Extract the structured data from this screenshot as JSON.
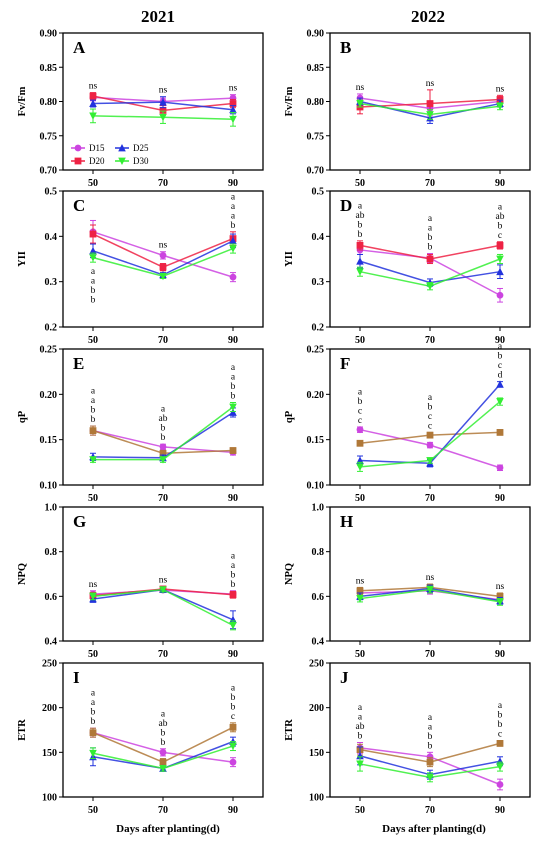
{
  "headers": {
    "left": "2021",
    "right": "2022"
  },
  "xlabel": "Days after planting(d)",
  "series_styles": [
    {
      "name": "D15",
      "color": "#cc44e0",
      "marker": "circle"
    },
    {
      "name": "D20",
      "color": "#ee2244",
      "marker": "square"
    },
    {
      "name": "D25",
      "color": "#2233dd",
      "marker": "triangle"
    },
    {
      "name": "D30",
      "color": "#33ee33",
      "marker": "triangle-down"
    }
  ],
  "chart_data": [
    {
      "type": "line",
      "panel": "A",
      "ylabel": "Fv/Fm",
      "ylim": [
        0.7,
        0.9
      ],
      "yticks": [
        "0.70",
        "0.75",
        "0.80",
        "0.85",
        "0.90"
      ],
      "x": [
        50,
        70,
        90
      ],
      "legend": {
        "placement": "bottom-left",
        "entries": [
          "D15",
          "D25",
          "D20",
          "D30"
        ]
      },
      "series": [
        {
          "name": "D15",
          "color": "#cc44e0",
          "values": [
            0.806,
            0.8,
            0.805
          ],
          "errors": [
            0.005,
            0.005,
            0.005
          ]
        },
        {
          "name": "D20",
          "color": "#ee2244",
          "values": [
            0.808,
            0.787,
            0.797
          ],
          "errors": [
            0.005,
            0.007,
            0.006
          ]
        },
        {
          "name": "D25",
          "color": "#2233dd",
          "values": [
            0.797,
            0.799,
            0.788
          ],
          "errors": [
            0.005,
            0.008,
            0.006
          ]
        },
        {
          "name": "D30",
          "color": "#33ee33",
          "values": [
            0.779,
            0.777,
            0.774
          ],
          "errors": [
            0.01,
            0.009,
            0.01
          ]
        }
      ],
      "sig_labels": [
        [
          "ns"
        ],
        [
          "ns"
        ],
        [
          "ns"
        ]
      ]
    },
    {
      "type": "line",
      "panel": "B",
      "ylabel": "Fv/Fm",
      "ylim": [
        0.7,
        0.9
      ],
      "yticks": [
        "0.70",
        "0.75",
        "0.80",
        "0.85",
        "0.90"
      ],
      "x": [
        50,
        70,
        90
      ],
      "series": [
        {
          "name": "D15",
          "color": "#cc44e0",
          "values": [
            0.805,
            0.79,
            0.8
          ],
          "errors": [
            0.006,
            0.01,
            0.006
          ]
        },
        {
          "name": "D20",
          "color": "#ee2244",
          "values": [
            0.792,
            0.797,
            0.803
          ],
          "errors": [
            0.01,
            0.02,
            0.006
          ]
        },
        {
          "name": "D25",
          "color": "#2233dd",
          "values": [
            0.8,
            0.776,
            0.797
          ],
          "errors": [
            0.005,
            0.008,
            0.005
          ]
        },
        {
          "name": "D30",
          "color": "#33ee33",
          "values": [
            0.797,
            0.781,
            0.793
          ],
          "errors": [
            0.005,
            0.007,
            0.005
          ]
        }
      ],
      "sig_labels": [
        [
          "ns"
        ],
        [
          "ns"
        ],
        [
          "ns"
        ]
      ]
    },
    {
      "type": "line",
      "panel": "C",
      "ylabel": "YII",
      "ylim": [
        0.2,
        0.5
      ],
      "yticks": [
        "0.2",
        "0.3",
        "0.4",
        "0.5"
      ],
      "x": [
        50,
        70,
        90
      ],
      "series": [
        {
          "name": "D15",
          "color": "#cc44e0",
          "values": [
            0.41,
            0.358,
            0.31
          ],
          "errors": [
            0.025,
            0.008,
            0.01
          ]
        },
        {
          "name": "D20",
          "color": "#ee2244",
          "values": [
            0.405,
            0.332,
            0.395
          ],
          "errors": [
            0.02,
            0.008,
            0.015
          ]
        },
        {
          "name": "D25",
          "color": "#2233dd",
          "values": [
            0.368,
            0.315,
            0.39
          ],
          "errors": [
            0.015,
            0.005,
            0.015
          ]
        },
        {
          "name": "D30",
          "color": "#33ee33",
          "values": [
            0.353,
            0.312,
            0.373
          ],
          "errors": [
            0.01,
            0.005,
            0.01
          ]
        }
      ],
      "sig_labels": [
        [
          "a",
          "a",
          "b",
          "b"
        ],
        [
          "ns"
        ],
        [
          "a",
          "a",
          "a",
          "b"
        ]
      ]
    },
    {
      "type": "line",
      "panel": "D",
      "ylabel": "YII",
      "ylim": [
        0.2,
        0.5
      ],
      "yticks": [
        "0.2",
        "0.3",
        "0.4",
        "0.5"
      ],
      "x": [
        50,
        70,
        90
      ],
      "series": [
        {
          "name": "D15",
          "color": "#cc44e0",
          "values": [
            0.37,
            0.352,
            0.27
          ],
          "errors": [
            0.01,
            0.01,
            0.015
          ]
        },
        {
          "name": "D20",
          "color": "#ee2244",
          "values": [
            0.38,
            0.35,
            0.38
          ],
          "errors": [
            0.01,
            0.01,
            0.008
          ]
        },
        {
          "name": "D25",
          "color": "#2233dd",
          "values": [
            0.345,
            0.298,
            0.322
          ],
          "errors": [
            0.015,
            0.008,
            0.015
          ]
        },
        {
          "name": "D30",
          "color": "#33ee33",
          "values": [
            0.322,
            0.29,
            0.35
          ],
          "errors": [
            0.01,
            0.008,
            0.01
          ]
        }
      ],
      "sig_labels": [
        [
          "a",
          "ab",
          "b",
          "b"
        ],
        [
          "a",
          "a",
          "b",
          "b"
        ],
        [
          "a",
          "ab",
          "b",
          "c"
        ]
      ]
    },
    {
      "type": "line",
      "panel": "E",
      "ylabel": "qP",
      "ylim": [
        0.1,
        0.25
      ],
      "yticks": [
        "0.10",
        "0.15",
        "0.20",
        "0.25"
      ],
      "x": [
        50,
        70,
        90
      ],
      "series": [
        {
          "name": "D15",
          "color": "#cc44e0",
          "values": [
            0.16,
            0.142,
            0.136
          ],
          "errors": [
            0.005,
            0.003,
            0.003
          ]
        },
        {
          "name": "D20",
          "color": "#b07838",
          "values": [
            0.16,
            0.135,
            0.138
          ],
          "errors": [
            0.005,
            0.003,
            0.003
          ]
        },
        {
          "name": "D25",
          "color": "#2233dd",
          "values": [
            0.131,
            0.13,
            0.18
          ],
          "errors": [
            0.004,
            0.003,
            0.005
          ]
        },
        {
          "name": "D30",
          "color": "#33ee33",
          "values": [
            0.128,
            0.128,
            0.186
          ],
          "errors": [
            0.003,
            0.003,
            0.005
          ]
        }
      ],
      "sig_labels": [
        [
          "a",
          "a",
          "b",
          "b"
        ],
        [
          "a",
          "ab",
          "b",
          "b"
        ],
        [
          "a",
          "a",
          "b",
          "b"
        ]
      ]
    },
    {
      "type": "line",
      "panel": "F",
      "ylabel": "qP",
      "ylim": [
        0.1,
        0.25
      ],
      "yticks": [
        "0.10",
        "0.15",
        "0.20",
        "0.25"
      ],
      "x": [
        50,
        70,
        90
      ],
      "series": [
        {
          "name": "D15",
          "color": "#cc44e0",
          "values": [
            0.161,
            0.144,
            0.119
          ],
          "errors": [
            0.003,
            0.003,
            0.003
          ]
        },
        {
          "name": "D20",
          "color": "#b07838",
          "values": [
            0.146,
            0.155,
            0.158
          ],
          "errors": [
            0.003,
            0.003,
            0.002
          ]
        },
        {
          "name": "D25",
          "color": "#2233dd",
          "values": [
            0.127,
            0.124,
            0.211
          ],
          "errors": [
            0.005,
            0.004,
            0.003
          ]
        },
        {
          "name": "D30",
          "color": "#33ee33",
          "values": [
            0.12,
            0.127,
            0.192
          ],
          "errors": [
            0.005,
            0.003,
            0.004
          ]
        }
      ],
      "sig_labels": [
        [
          "a",
          "b",
          "c",
          "c"
        ],
        [
          "a",
          "b",
          "c",
          "c"
        ],
        [
          "a",
          "b",
          "c",
          "d"
        ]
      ]
    },
    {
      "type": "line",
      "panel": "G",
      "ylabel": "NPQ",
      "ylim": [
        0.4,
        1.0
      ],
      "yticks": [
        "0.4",
        "0.6",
        "0.8",
        "1.0"
      ],
      "x": [
        50,
        70,
        90
      ],
      "series": [
        {
          "name": "D15",
          "color": "#cc44e0",
          "values": [
            0.61,
            0.628,
            0.61
          ],
          "errors": [
            0.015,
            0.01,
            0.015
          ]
        },
        {
          "name": "D20",
          "color": "#ee2244",
          "values": [
            0.603,
            0.633,
            0.607
          ],
          "errors": [
            0.015,
            0.01,
            0.015
          ]
        },
        {
          "name": "D25",
          "color": "#2233dd",
          "values": [
            0.588,
            0.63,
            0.495
          ],
          "errors": [
            0.015,
            0.01,
            0.04
          ]
        },
        {
          "name": "D30",
          "color": "#33ee33",
          "values": [
            0.6,
            0.63,
            0.47
          ],
          "errors": [
            0.015,
            0.01,
            0.02
          ]
        }
      ],
      "sig_labels": [
        [
          "ns"
        ],
        [
          "ns"
        ],
        [
          "a",
          "a",
          "b",
          "b"
        ]
      ]
    },
    {
      "type": "line",
      "panel": "H",
      "ylabel": "NPQ",
      "ylim": [
        0.4,
        1.0
      ],
      "yticks": [
        "0.4",
        "0.6",
        "0.8",
        "1.0"
      ],
      "x": [
        50,
        70,
        90
      ],
      "series": [
        {
          "name": "D15",
          "color": "#cc44e0",
          "values": [
            0.615,
            0.625,
            0.585
          ],
          "errors": [
            0.015,
            0.015,
            0.015
          ]
        },
        {
          "name": "D20",
          "color": "#b07838",
          "values": [
            0.625,
            0.64,
            0.6
          ],
          "errors": [
            0.015,
            0.015,
            0.015
          ]
        },
        {
          "name": "D25",
          "color": "#2233dd",
          "values": [
            0.6,
            0.635,
            0.58
          ],
          "errors": [
            0.015,
            0.015,
            0.015
          ]
        },
        {
          "name": "D30",
          "color": "#33ee33",
          "values": [
            0.59,
            0.63,
            0.575
          ],
          "errors": [
            0.015,
            0.015,
            0.015
          ]
        }
      ],
      "sig_labels": [
        [
          "ns"
        ],
        [
          "ns"
        ],
        [
          "ns"
        ]
      ]
    },
    {
      "type": "line",
      "panel": "I",
      "ylabel": "ETR",
      "ylim": [
        100,
        250
      ],
      "yticks": [
        "100",
        "150",
        "200",
        "250"
      ],
      "x": [
        50,
        70,
        90
      ],
      "series": [
        {
          "name": "D15",
          "color": "#cc44e0",
          "values": [
            172,
            150,
            139
          ],
          "errors": [
            5,
            4,
            5
          ]
        },
        {
          "name": "D20",
          "color": "#b07838",
          "values": [
            172,
            139,
            178
          ],
          "errors": [
            5,
            4,
            5
          ]
        },
        {
          "name": "D25",
          "color": "#2233dd",
          "values": [
            145,
            132,
            162
          ],
          "errors": [
            10,
            3,
            5
          ]
        },
        {
          "name": "D30",
          "color": "#33ee33",
          "values": [
            149,
            132,
            157
          ],
          "errors": [
            6,
            3,
            5
          ]
        }
      ],
      "sig_labels": [
        [
          "a",
          "a",
          "b",
          "b"
        ],
        [
          "a",
          "ab",
          "b",
          "b"
        ],
        [
          "a",
          "b",
          "b",
          "c"
        ]
      ]
    },
    {
      "type": "line",
      "panel": "J",
      "ylabel": "ETR",
      "ylim": [
        100,
        250
      ],
      "yticks": [
        "100",
        "150",
        "200",
        "250"
      ],
      "x": [
        50,
        70,
        90
      ],
      "series": [
        {
          "name": "D15",
          "color": "#cc44e0",
          "values": [
            155,
            145,
            114
          ],
          "errors": [
            6,
            5,
            6
          ]
        },
        {
          "name": "D20",
          "color": "#b07838",
          "values": [
            153,
            139,
            160
          ],
          "errors": [
            6,
            5,
            3
          ]
        },
        {
          "name": "D25",
          "color": "#2233dd",
          "values": [
            146,
            125,
            140
          ],
          "errors": [
            10,
            5,
            5
          ]
        },
        {
          "name": "D30",
          "color": "#33ee33",
          "values": [
            137,
            122,
            134
          ],
          "errors": [
            8,
            5,
            5
          ]
        }
      ],
      "sig_labels": [
        [
          "a",
          "a",
          "ab",
          "b"
        ],
        [
          "a",
          "a",
          "b",
          "b"
        ],
        [
          "a",
          "b",
          "b",
          "c"
        ]
      ]
    }
  ]
}
